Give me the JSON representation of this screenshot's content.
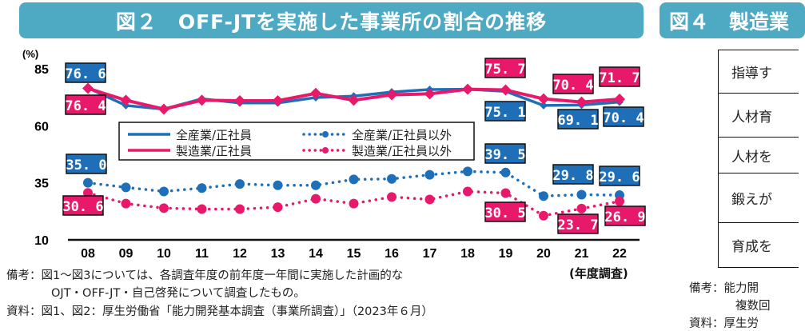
{
  "title": "図２　OFF-JTを実施した事業所の割合の推移",
  "right_panel": {
    "title": "図４　製造業",
    "rows": [
      "指導す",
      "人材育",
      "人材を",
      "鍛えが",
      "育成を"
    ],
    "notes": [
      "備考：能力開",
      "複数回",
      "資料：厚生労"
    ]
  },
  "notes": [
    "備考：図1～図3については、各調査年度の前年度一年間に実施した計画的な",
    "OJT・OFF-JT・自己啓発について調査したもの。",
    "資料：図1、図2：厚生労働省「能力開発基本調査（事業所調査）」（2023年６月）"
  ],
  "chart_data": {
    "type": "line",
    "title": "図２　OFF-JTを実施した事業所の割合の推移",
    "ylabel": "(%)",
    "xlabel": "(年度調査)",
    "ylim": [
      10,
      85
    ],
    "yticks": [
      85,
      60,
      35,
      10
    ],
    "categories": [
      "08",
      "09",
      "10",
      "11",
      "12",
      "13",
      "14",
      "15",
      "16",
      "17",
      "18",
      "19",
      "20",
      "21",
      "22"
    ],
    "legend_position": "center",
    "grid": false,
    "series": [
      {
        "name": "全産業/正社員",
        "color": "#1f6fb8",
        "style": "solid-diamond",
        "values": [
          76.6,
          68.9,
          67.3,
          71.8,
          70.0,
          70.0,
          72.4,
          73.0,
          74.8,
          75.9,
          76.0,
          75.1,
          68.9,
          69.1,
          70.4
        ],
        "labels": {
          "0": "76.6",
          "11": "75.1",
          "13": "69.1",
          "14": "70.4"
        }
      },
      {
        "name": "製造業/正社員",
        "color": "#e8196a",
        "style": "solid-diamond",
        "values": [
          76.4,
          71.2,
          67.3,
          71.2,
          71.0,
          71.0,
          74.2,
          71.2,
          73.6,
          74.0,
          76.0,
          75.7,
          71.8,
          70.4,
          71.7
        ],
        "labels": {
          "0": "76.4",
          "11": "75.7",
          "13": "70.4",
          "14": "71.7"
        }
      },
      {
        "name": "全産業/正社員以外",
        "color": "#1f6fb8",
        "style": "dotted-circle",
        "values": [
          35.0,
          33.0,
          31.2,
          32.7,
          34.5,
          33.9,
          33.9,
          36.5,
          36.7,
          38.5,
          40.0,
          39.5,
          29.2,
          29.8,
          29.6
        ],
        "labels": {
          "0": "35.0",
          "11": "39.5",
          "13": "29.8",
          "14": "29.6"
        }
      },
      {
        "name": "製造業/正社員以外",
        "color": "#e8196a",
        "style": "dotted-circle",
        "values": [
          30.6,
          25.9,
          23.9,
          23.5,
          23.5,
          24.3,
          28.0,
          25.9,
          28.8,
          27.7,
          31.2,
          30.5,
          20.6,
          23.7,
          26.9
        ],
        "labels": {
          "0": "30.6",
          "11": "30.5",
          "13": "23.7",
          "14": "26.9"
        }
      }
    ]
  }
}
